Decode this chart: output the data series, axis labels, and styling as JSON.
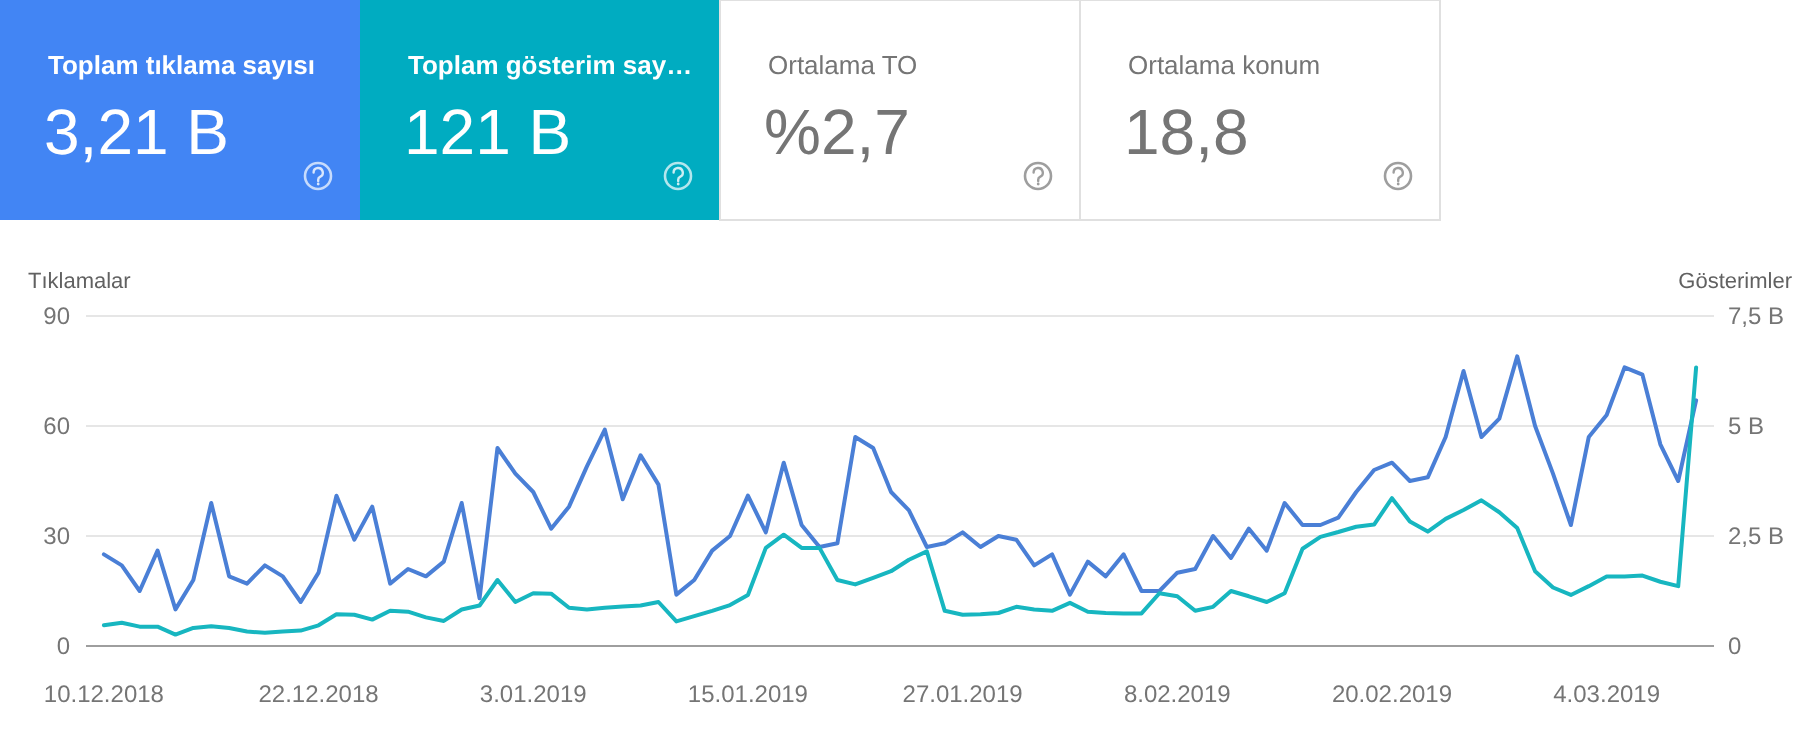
{
  "chart_data": [
    {
      "type": "other",
      "categories": [
        "Toplam tıklama sayısı",
        "Toplam gösterim say…",
        "Ortalama TO",
        "Ortalama konum"
      ],
      "value_labels": [
        "3,21 B",
        "121 B",
        "%2,7",
        "18,8"
      ],
      "colors": [
        "#4285f4",
        "#00acc1",
        "#ffffff",
        "#ffffff"
      ]
    },
    {
      "type": "line",
      "ylabel": "Tıklamalar",
      "y2label": "Gösterimler",
      "ylim": [
        0,
        90
      ],
      "yticks": [
        0,
        30,
        60,
        90
      ],
      "y2lim": [
        0,
        7.5
      ],
      "y2ticks": [
        {
          "value": 0,
          "label": "0"
        },
        {
          "value": 2.5,
          "label": "2,5 B"
        },
        {
          "value": 5,
          "label": "5 B"
        },
        {
          "value": 7.5,
          "label": "7,5 B"
        }
      ],
      "xlim": [
        "2018-12-09",
        "2019-03-10"
      ],
      "xticks": [
        {
          "value": "2018-12-10",
          "label": "10.12.2018"
        },
        {
          "value": "2018-12-22",
          "label": "22.12.2018"
        },
        {
          "value": "2019-01-03",
          "label": "3.01.2019"
        },
        {
          "value": "2019-01-15",
          "label": "15.01.2019"
        },
        {
          "value": "2019-01-27",
          "label": "27.01.2019"
        },
        {
          "value": "2019-02-08",
          "label": "8.02.2019"
        },
        {
          "value": "2019-02-20",
          "label": "20.02.2019"
        },
        {
          "value": "2019-03-04",
          "label": "4.03.2019"
        }
      ],
      "grid": "y",
      "marker": "none",
      "line_style": "solid",
      "x": [
        "2018-12-10",
        "2018-12-11",
        "2018-12-12",
        "2018-12-13",
        "2018-12-14",
        "2018-12-15",
        "2018-12-16",
        "2018-12-17",
        "2018-12-18",
        "2018-12-19",
        "2018-12-20",
        "2018-12-21",
        "2018-12-22",
        "2018-12-23",
        "2018-12-24",
        "2018-12-25",
        "2018-12-26",
        "2018-12-27",
        "2018-12-28",
        "2018-12-29",
        "2018-12-30",
        "2018-12-31",
        "2019-01-01",
        "2019-01-02",
        "2019-01-03",
        "2019-01-04",
        "2019-01-05",
        "2019-01-06",
        "2019-01-07",
        "2019-01-08",
        "2019-01-09",
        "2019-01-10",
        "2019-01-11",
        "2019-01-12",
        "2019-01-13",
        "2019-01-14",
        "2019-01-15",
        "2019-01-16",
        "2019-01-17",
        "2019-01-18",
        "2019-01-19",
        "2019-01-20",
        "2019-01-21",
        "2019-01-22",
        "2019-01-23",
        "2019-01-24",
        "2019-01-25",
        "2019-01-26",
        "2019-01-27",
        "2019-01-28",
        "2019-01-29",
        "2019-01-30",
        "2019-01-31",
        "2019-02-01",
        "2019-02-02",
        "2019-02-03",
        "2019-02-04",
        "2019-02-05",
        "2019-02-06",
        "2019-02-07",
        "2019-02-08",
        "2019-02-09",
        "2019-02-10",
        "2019-02-11",
        "2019-02-12",
        "2019-02-13",
        "2019-02-14",
        "2019-02-15",
        "2019-02-16",
        "2019-02-17",
        "2019-02-18",
        "2019-02-19",
        "2019-02-20",
        "2019-02-21",
        "2019-02-22",
        "2019-02-23",
        "2019-02-24",
        "2019-02-25",
        "2019-02-26",
        "2019-02-27",
        "2019-02-28",
        "2019-03-01",
        "2019-03-02",
        "2019-03-03",
        "2019-03-04",
        "2019-03-05",
        "2019-03-06",
        "2019-03-07",
        "2019-03-08",
        "2019-03-09"
      ],
      "series": [
        {
          "color": "#4a7fd6",
          "values": [
            25,
            22,
            15,
            26,
            10,
            18,
            39,
            19,
            17,
            22,
            19,
            12,
            20,
            41,
            29,
            38,
            17,
            21,
            19,
            23,
            39,
            13,
            54,
            47,
            42,
            32,
            38,
            49,
            59,
            40,
            52,
            44,
            14,
            18,
            26,
            30,
            41,
            31,
            50,
            33,
            27,
            28,
            57,
            54,
            42,
            37,
            27,
            28,
            31,
            27,
            30,
            29,
            22,
            25,
            14,
            23,
            19,
            25,
            15,
            15,
            20,
            21,
            30,
            24,
            32,
            26,
            39,
            33,
            33,
            35,
            42,
            48,
            50,
            45,
            46,
            57,
            75,
            57,
            62,
            79,
            60,
            47,
            33,
            57,
            63,
            76,
            74,
            55,
            45,
            67
          ]
        },
        {
          "color": "#17b6c0",
          "axis": "y2",
          "values": [
            0.47,
            0.53,
            0.44,
            0.44,
            0.26,
            0.41,
            0.45,
            0.41,
            0.33,
            0.3,
            0.33,
            0.35,
            0.47,
            0.72,
            0.71,
            0.6,
            0.8,
            0.78,
            0.65,
            0.57,
            0.83,
            0.92,
            1.5,
            1.0,
            1.2,
            1.19,
            0.87,
            0.83,
            0.87,
            0.9,
            0.92,
            1.0,
            0.56,
            0.68,
            0.8,
            0.93,
            1.16,
            2.23,
            2.53,
            2.23,
            2.23,
            1.5,
            1.4,
            1.55,
            1.7,
            1.96,
            2.15,
            0.8,
            0.71,
            0.72,
            0.75,
            0.89,
            0.83,
            0.8,
            0.98,
            0.78,
            0.75,
            0.74,
            0.74,
            1.2,
            1.13,
            0.8,
            0.89,
            1.25,
            1.13,
            1.0,
            1.2,
            2.21,
            2.48,
            2.59,
            2.71,
            2.76,
            3.36,
            2.83,
            2.6,
            2.89,
            3.09,
            3.31,
            3.04,
            2.68,
            1.7,
            1.33,
            1.16,
            1.36,
            1.58,
            1.58,
            1.6,
            1.46,
            1.36,
            6.33
          ]
        }
      ]
    }
  ]
}
